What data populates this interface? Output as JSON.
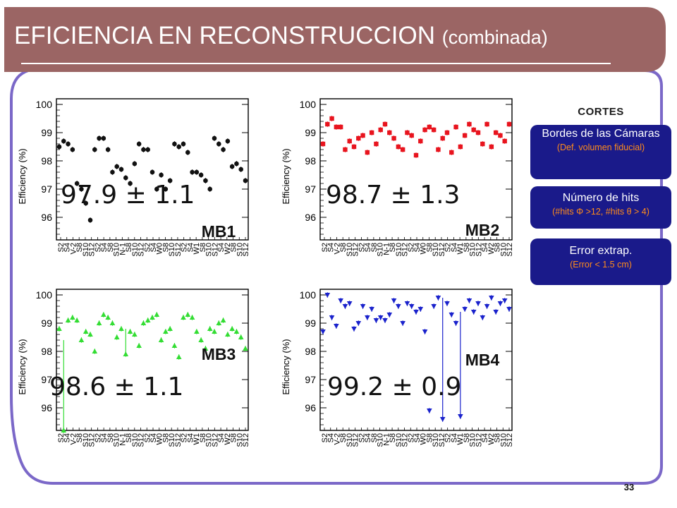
{
  "slide": {
    "title_main": "EFICIENCIA EN RECONSTRUCCION",
    "title_sub": "(combinada)",
    "page_number": "33",
    "colors": {
      "banner": "#9b6564",
      "frame": "#7b68c8",
      "box": "#1a1a8a",
      "box_highlight": "#ff8c1a"
    }
  },
  "cortes": {
    "title": "CORTES",
    "items": [
      {
        "main": "Bordes de las Cámaras",
        "sub": "(Def. volumen fiducial)"
      },
      {
        "main": "Número de hits",
        "sub": "(#hits Φ >12, #hits θ > 4)"
      },
      {
        "main": "Error extrap.",
        "sub": "(Error < 1.5 cm)"
      }
    ]
  },
  "chart_data": [
    {
      "type": "scatter",
      "name": "MB1",
      "label": "MB1",
      "average": "97.9 ± 1.1",
      "ylabel": "Efficiency (%)",
      "ylim": [
        95.2,
        100.2
      ],
      "yticks": [
        96,
        97,
        98,
        99,
        100
      ],
      "xticklabels": [
        "S2",
        "S4",
        "V-2",
        "S8",
        "S10",
        "S12",
        "S2",
        "S4",
        "S8",
        "S10",
        "N-1",
        "S8",
        "S10",
        "S12",
        "S2",
        "S4",
        "W0",
        "S8",
        "S10",
        "S12",
        "S2",
        "S4",
        "W1",
        "S8",
        "S10",
        "S12",
        "S4",
        "W2",
        "S8",
        "S10",
        "S12"
      ],
      "marker": "circle",
      "color": "#111111",
      "values": [
        98.5,
        98.7,
        98.6,
        98.4,
        97.2,
        97.0,
        96.5,
        95.9,
        98.4,
        98.8,
        98.8,
        98.4,
        97.6,
        97.8,
        97.7,
        97.4,
        97.2,
        97.9,
        98.6,
        98.4,
        98.4,
        97.6,
        97.0,
        97.5,
        97.0,
        97.3,
        98.6,
        98.5,
        98.6,
        98.3,
        97.6,
        97.6,
        97.5,
        97.3,
        97.0,
        98.8,
        98.6,
        98.4,
        98.7,
        97.8,
        97.9,
        97.7,
        97.3
      ]
    },
    {
      "type": "scatter",
      "name": "MB2",
      "label": "MB2",
      "average": "98.7 ± 1.3",
      "ylabel": "Efficiency (%)",
      "ylim": [
        95.2,
        100.2
      ],
      "yticks": [
        96,
        97,
        98,
        99,
        100
      ],
      "xticklabels": [
        "S2",
        "S4",
        "V-2",
        "S8",
        "S10",
        "S12",
        "S2",
        "S4",
        "S8",
        "S10",
        "N-1",
        "S8",
        "S10",
        "S12",
        "S2",
        "S4",
        "W0",
        "S8",
        "S10",
        "S12",
        "S2",
        "S4",
        "W1",
        "S8",
        "S10",
        "S12",
        "S4",
        "W2",
        "S8",
        "S10",
        "S12"
      ],
      "marker": "square",
      "color": "#e8141e",
      "values": [
        98.6,
        99.3,
        99.5,
        99.2,
        99.2,
        98.4,
        98.7,
        98.5,
        98.8,
        98.9,
        98.3,
        99.0,
        98.6,
        99.1,
        99.3,
        99.0,
        98.8,
        98.5,
        98.4,
        99.0,
        98.9,
        98.2,
        98.7,
        99.1,
        99.2,
        99.1,
        98.4,
        98.8,
        99.0,
        98.3,
        99.2,
        98.5,
        98.9,
        99.3,
        99.1,
        99.0,
        98.6,
        99.3,
        98.5,
        99.0,
        98.9,
        98.7,
        99.3
      ]
    },
    {
      "type": "scatter",
      "name": "MB3",
      "label": "MB3",
      "average": "98.6 ± 1.1",
      "ylabel": "Efficiency (%)",
      "ylim": [
        95.2,
        100.2
      ],
      "yticks": [
        96,
        97,
        98,
        99,
        100
      ],
      "xticklabels": [
        "S2",
        "S4",
        "V-2",
        "S8",
        "S10",
        "S12",
        "S2",
        "S4",
        "S8",
        "S10",
        "N-1",
        "S8",
        "S10",
        "S12",
        "S2",
        "S4",
        "W0",
        "S8",
        "S10",
        "S12",
        "S2",
        "S4",
        "W1",
        "S8",
        "S10",
        "S12",
        "S4",
        "W2",
        "S8",
        "S10",
        "S12"
      ],
      "marker": "triangle-up",
      "color": "#33dd33",
      "values": [
        98.8,
        95.2,
        99.1,
        99.2,
        99.1,
        98.4,
        98.7,
        98.6,
        98.0,
        99.0,
        99.3,
        99.2,
        99.0,
        98.5,
        98.8,
        97.9,
        98.7,
        98.6,
        98.2,
        99.0,
        99.1,
        99.2,
        99.3,
        98.4,
        98.7,
        98.8,
        98.2,
        97.8,
        99.2,
        99.3,
        99.2,
        98.7,
        98.4,
        98.1,
        98.8,
        98.7,
        99.0,
        99.1,
        98.6,
        98.8,
        98.7,
        98.5,
        98.1
      ]
    },
    {
      "type": "scatter",
      "name": "MB4",
      "label": "MB4",
      "average": "99.2 ± 0.9",
      "ylabel": "Efficiency (%)",
      "ylim": [
        95.2,
        100.2
      ],
      "yticks": [
        96,
        97,
        98,
        99,
        100
      ],
      "xticklabels": [
        "S2",
        "S4",
        "V-2",
        "S8",
        "S10",
        "S12",
        "S2",
        "S4",
        "S8",
        "S10",
        "N-1",
        "S8",
        "S10",
        "S12",
        "S2",
        "S4",
        "W0",
        "S8",
        "S10",
        "S12",
        "S2",
        "S4",
        "W1",
        "S8",
        "S10",
        "S12",
        "S4",
        "W2",
        "S8",
        "S10",
        "S12"
      ],
      "marker": "triangle-down",
      "color": "#1a22cc",
      "values": [
        98.7,
        100.0,
        99.2,
        98.9,
        99.8,
        99.6,
        99.7,
        98.8,
        99.0,
        99.6,
        99.2,
        99.5,
        99.1,
        99.2,
        99.1,
        99.3,
        99.8,
        99.6,
        99.0,
        99.7,
        99.6,
        99.4,
        99.5,
        98.7,
        95.9,
        99.6,
        99.9,
        95.6,
        99.7,
        99.3,
        99.0,
        95.7,
        99.5,
        99.8,
        99.4,
        99.7,
        99.2,
        99.6,
        99.9,
        99.4,
        99.7,
        99.8,
        99.5
      ]
    }
  ]
}
